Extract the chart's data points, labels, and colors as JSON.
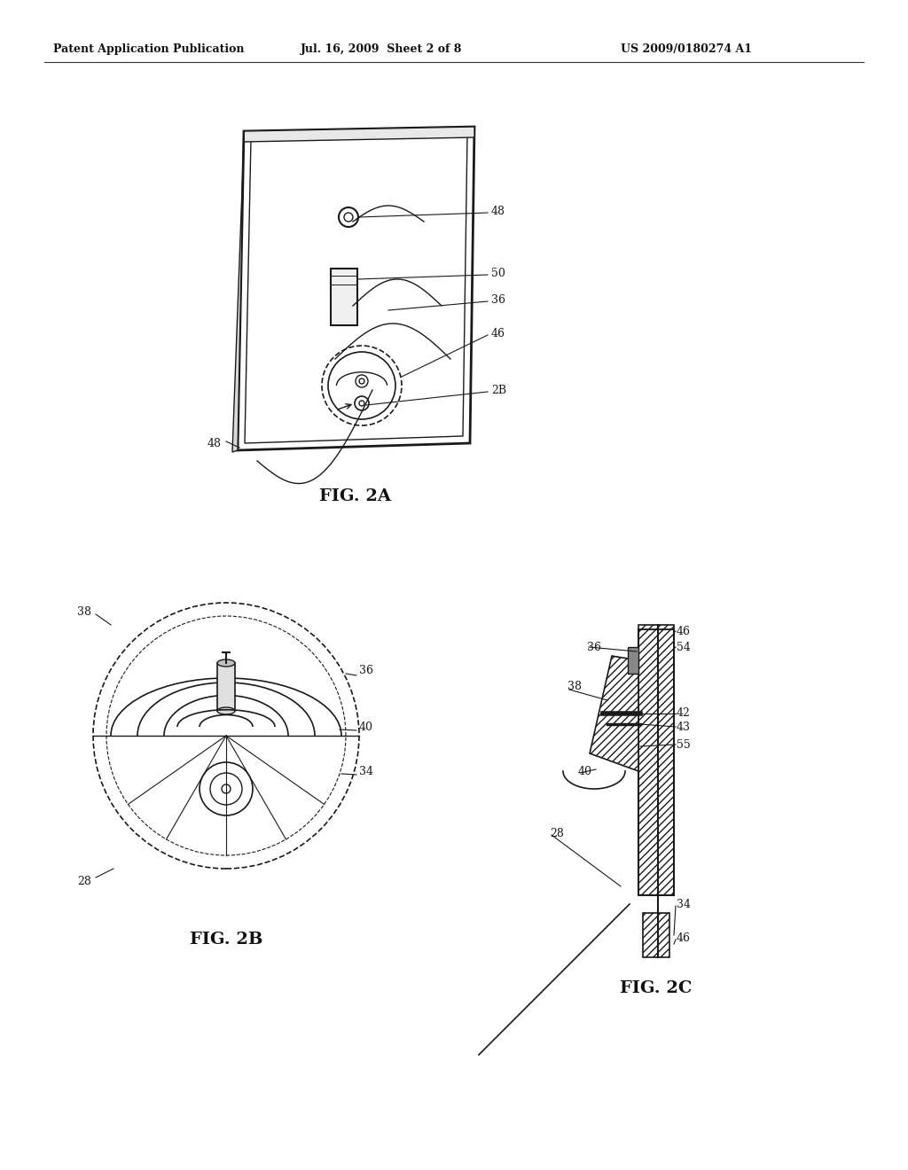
{
  "bg_color": "#ffffff",
  "header_left": "Patent Application Publication",
  "header_mid": "Jul. 16, 2009  Sheet 2 of 8",
  "header_right": "US 2009/0180274 A1",
  "fig2a_label": "FIG. 2A",
  "fig2b_label": "FIG. 2B",
  "fig2c_label": "FIG. 2C",
  "line_color": "#1a1a1a"
}
